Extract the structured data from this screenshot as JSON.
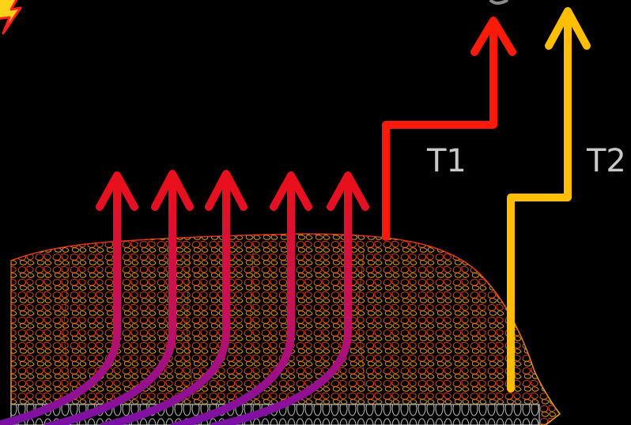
{
  "labels": {
    "t1": "T1",
    "t2": "T2"
  },
  "colors": {
    "background": "#000000",
    "t1_arrow": "#ff1a0a",
    "t2_arrow": "#ffbf00",
    "heat_top": "#e8101c",
    "heat_bottom": "#7a10a8",
    "grain_top": "#e0301a",
    "grain_bottom": "#e8b020",
    "label_text": "#c8c8c8"
  },
  "icons": {
    "flash": "lightning-icon",
    "probe": "probe-icon"
  }
}
